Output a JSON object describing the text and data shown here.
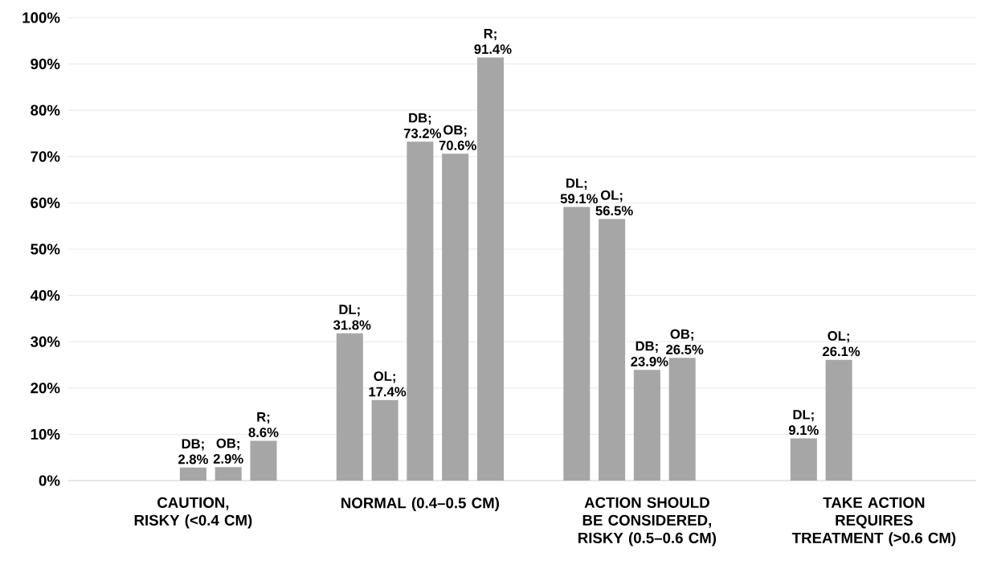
{
  "chart_data": {
    "type": "bar",
    "categories": [
      "CAUTION, RISKY (<0.4 CM)",
      "NORMAL (0.4–0.5 CM)",
      "ACTION SHOULD BE CONSIDERED, RISKY (0.5–0.6 CM)",
      "TAKE ACTION REQUIRES TREATMENT (>0.6 CM)"
    ],
    "series": [
      {
        "color": "#a6a6a6",
        "values": [
          null,
          31.8,
          59.1,
          9.1
        ],
        "value_labels": [
          null,
          "DL; 31.8%",
          "DL; 59.1%",
          "DL; 9.1%"
        ]
      },
      {
        "color": "#a6a6a6",
        "values": [
          null,
          17.4,
          56.5,
          26.1
        ],
        "value_labels": [
          null,
          "OL; 17.4%",
          "OL; 56.5%",
          "OL; 26.1%"
        ]
      },
      {
        "color": "#a6a6a6",
        "values": [
          2.8,
          73.2,
          23.9,
          null
        ],
        "value_labels": [
          "DB; 2.8%",
          "DB; 73.2%",
          "DB; 23.9%",
          null
        ]
      },
      {
        "color": "#a6a6a6",
        "values": [
          2.9,
          70.6,
          26.5,
          null
        ],
        "value_labels": [
          "OB; 2.9%",
          "OB; 70.6%",
          "OB; 26.5%",
          null
        ]
      },
      {
        "color": "#a6a6a6",
        "values": [
          8.6,
          91.4,
          null,
          null
        ],
        "value_labels": [
          "R; 8.6%",
          "R; 91.4%",
          null,
          null
        ]
      }
    ],
    "ylim": [
      0,
      100
    ],
    "yticks": [
      {
        "value": 0,
        "label": "0%"
      },
      {
        "value": 10,
        "label": "10%"
      },
      {
        "value": 20,
        "label": "20%"
      },
      {
        "value": 30,
        "label": "30%"
      },
      {
        "value": 40,
        "label": "40%"
      },
      {
        "value": 50,
        "label": "50%"
      },
      {
        "value": 60,
        "label": "60%"
      },
      {
        "value": 70,
        "label": "70%"
      },
      {
        "value": 80,
        "label": "80%"
      },
      {
        "value": 90,
        "label": "90%"
      },
      {
        "value": 100,
        "label": "100%"
      }
    ],
    "grid": "y"
  }
}
